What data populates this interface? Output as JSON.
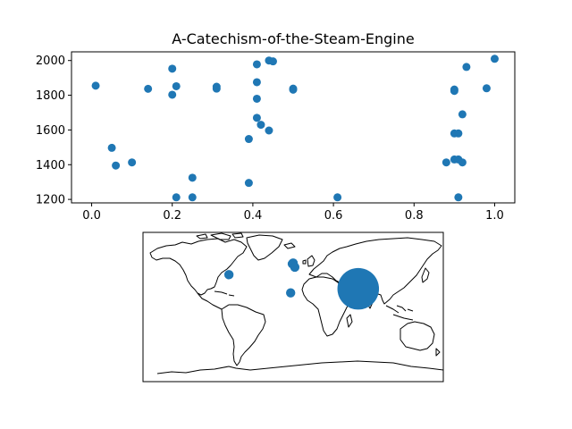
{
  "chart_data": [
    {
      "type": "scatter",
      "title": "A-Catechism-of-the-Steam-Engine",
      "xlabel": "",
      "ylabel": "",
      "xlim": [
        -0.05,
        1.05
      ],
      "ylim": [
        1180,
        2050
      ],
      "xticks": [
        "0.0",
        "0.2",
        "0.4",
        "0.6",
        "0.8",
        "1.0"
      ],
      "yticks": [
        "1200",
        "1400",
        "1600",
        "1800",
        "2000"
      ],
      "grid": false,
      "marker_color": "#1f77b4",
      "points": [
        {
          "x": 0.01,
          "y": 1855
        },
        {
          "x": 0.05,
          "y": 1497
        },
        {
          "x": 0.06,
          "y": 1395
        },
        {
          "x": 0.1,
          "y": 1413
        },
        {
          "x": 0.14,
          "y": 1837
        },
        {
          "x": 0.2,
          "y": 1953
        },
        {
          "x": 0.21,
          "y": 1852
        },
        {
          "x": 0.2,
          "y": 1803
        },
        {
          "x": 0.21,
          "y": 1212
        },
        {
          "x": 0.25,
          "y": 1212
        },
        {
          "x": 0.25,
          "y": 1325
        },
        {
          "x": 0.31,
          "y": 1849
        },
        {
          "x": 0.31,
          "y": 1838
        },
        {
          "x": 0.39,
          "y": 1295
        },
        {
          "x": 0.39,
          "y": 1548
        },
        {
          "x": 0.41,
          "y": 1978
        },
        {
          "x": 0.41,
          "y": 1875
        },
        {
          "x": 0.41,
          "y": 1780
        },
        {
          "x": 0.41,
          "y": 1670
        },
        {
          "x": 0.42,
          "y": 1630
        },
        {
          "x": 0.44,
          "y": 1597
        },
        {
          "x": 0.44,
          "y": 2000
        },
        {
          "x": 0.45,
          "y": 1995
        },
        {
          "x": 0.5,
          "y": 1838
        },
        {
          "x": 0.5,
          "y": 1832
        },
        {
          "x": 0.61,
          "y": 1212
        },
        {
          "x": 0.88,
          "y": 1413
        },
        {
          "x": 0.9,
          "y": 1430
        },
        {
          "x": 0.91,
          "y": 1430
        },
        {
          "x": 0.9,
          "y": 1580
        },
        {
          "x": 0.91,
          "y": 1580
        },
        {
          "x": 0.9,
          "y": 1833
        },
        {
          "x": 0.9,
          "y": 1825
        },
        {
          "x": 0.91,
          "y": 1212
        },
        {
          "x": 0.92,
          "y": 1413
        },
        {
          "x": 0.92,
          "y": 1690
        },
        {
          "x": 0.93,
          "y": 1963
        },
        {
          "x": 0.98,
          "y": 1840
        },
        {
          "x": 1.0,
          "y": 2010
        }
      ]
    },
    {
      "type": "scatter",
      "projection": "world map",
      "marker_color": "#1f77b4",
      "points": [
        {
          "lon": -77,
          "lat": 39,
          "size": 1
        },
        {
          "lon": -1,
          "lat": 52,
          "size": 1
        },
        {
          "lon": 0,
          "lat": 53,
          "size": 1
        },
        {
          "lon": 2,
          "lat": 48,
          "size": 1
        },
        {
          "lon": -3,
          "lat": 17,
          "size": 1
        },
        {
          "lon": 78,
          "lat": 22,
          "size": 20
        }
      ]
    }
  ]
}
